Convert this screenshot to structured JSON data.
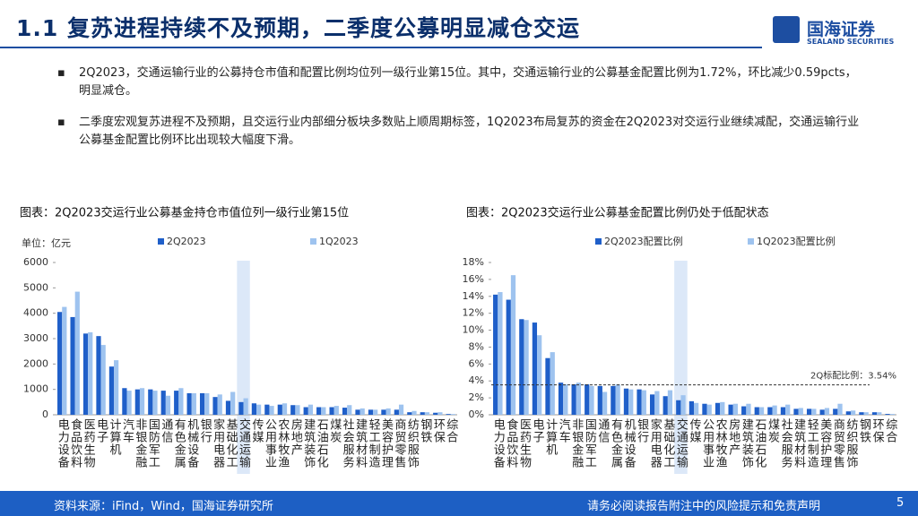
{
  "header": {
    "title": "1.1 复苏进程持续不及预期，二季度公募明显减仓交运",
    "logo": "国海证券",
    "logo_sub": "SEALAND SECURITIES"
  },
  "bullets": [
    "2Q2023，交通运输行业的公募持仓市值和配置比例均位列一级行业第15位。其中，交通运输行业的公募基金配置比例为1.72%，环比减少0.59pcts，明显减仓。",
    "二季度宏观复苏进程不及预期，且交运行业内部细分板块多数贴上顺周期标签，1Q2023布局复苏的资金在2Q2023对交运行业继续减配，交通运输行业公募基金配置比例环比出现较大幅度下滑。"
  ],
  "footer": {
    "source": "资料来源：iFind，Wind，国海证券研究所",
    "disclaimer": "请务必阅读报告附注中的风险提示和免责声明",
    "page": "5"
  },
  "chart_data": [
    {
      "type": "bar",
      "title": "图表：2Q2023交运行业公募基金持仓市值位列一级行业第15位",
      "y_label": "单位：亿元",
      "categories": [
        "电力设备",
        "食品饮料",
        "医药生物",
        "电子",
        "计算机",
        "汽车",
        "非银金融",
        "国防军工",
        "通信",
        "有色金属",
        "机械设备",
        "银行",
        "家用电器",
        "基础化工",
        "交通运输",
        "传媒",
        "公用事业",
        "农林牧渔",
        "房地产",
        "建筑装饰",
        "石油石化",
        "煤炭",
        "社会服务",
        "建筑材料",
        "轻工制造",
        "美容护理",
        "商贸零售",
        "纺织服饰",
        "钢铁",
        "环保",
        "综合"
      ],
      "series": [
        {
          "name": "2Q2023",
          "color": "#1f5fc9",
          "values": [
            4050,
            3850,
            3200,
            3100,
            1900,
            1050,
            1000,
            1000,
            950,
            950,
            850,
            850,
            700,
            550,
            500,
            450,
            400,
            400,
            380,
            300,
            300,
            300,
            280,
            200,
            200,
            200,
            200,
            100,
            100,
            80,
            30
          ]
        },
        {
          "name": "1Q2023",
          "color": "#9ec3ef",
          "values": [
            4250,
            4850,
            3250,
            2750,
            2150,
            950,
            1050,
            950,
            750,
            1050,
            850,
            850,
            800,
            900,
            650,
            400,
            350,
            450,
            380,
            400,
            300,
            350,
            380,
            250,
            200,
            250,
            400,
            150,
            100,
            100,
            30
          ]
        }
      ],
      "ylim": [
        0,
        6000
      ],
      "yticks": [
        0,
        1000,
        2000,
        3000,
        4000,
        5000,
        6000
      ],
      "highlight": 14,
      "highlight_color": "#dce8f8"
    },
    {
      "type": "bar",
      "title": "图表：2Q2023交运行业公募基金配置比例仍处于低配状态",
      "categories": [
        "电力设备",
        "食品饮料",
        "医药生物",
        "电子",
        "计算机",
        "汽车",
        "非银金融",
        "国防军工",
        "通信",
        "有色金属",
        "机械设备",
        "银行",
        "家用电器",
        "基础化工",
        "交通运输",
        "传媒",
        "公用事业",
        "农林牧渔",
        "房地产",
        "建筑装饰",
        "石油石化",
        "煤炭",
        "社会服务",
        "建筑材料",
        "轻工制造",
        "美容护理",
        "商贸零售",
        "纺织服饰",
        "钢铁",
        "环保",
        "综合"
      ],
      "series": [
        {
          "name": "2Q2023配置比例",
          "color": "#1f5fc9",
          "values": [
            14.2,
            13.6,
            11.3,
            10.9,
            6.7,
            3.8,
            3.6,
            3.6,
            3.4,
            3.4,
            3.1,
            3.0,
            2.4,
            2.2,
            1.72,
            1.6,
            1.3,
            1.4,
            1.2,
            1.0,
            0.9,
            0.9,
            0.9,
            0.7,
            0.7,
            0.6,
            0.7,
            0.4,
            0.3,
            0.3,
            0.1
          ]
        },
        {
          "name": "1Q2023配置比例",
          "color": "#9ec3ef",
          "values": [
            14.5,
            16.5,
            11.2,
            9.4,
            7.4,
            3.6,
            3.8,
            3.4,
            2.7,
            3.6,
            3.0,
            2.9,
            2.8,
            2.9,
            2.31,
            1.4,
            1.2,
            1.5,
            1.3,
            1.3,
            0.9,
            1.1,
            1.2,
            0.8,
            0.7,
            0.8,
            1.3,
            0.5,
            0.3,
            0.3,
            0.1
          ]
        }
      ],
      "ylim": [
        0,
        18
      ],
      "yticks": [
        {
          "value": 0,
          "label": "0%"
        },
        {
          "value": 2,
          "label": "2%"
        },
        {
          "value": 4,
          "label": "4%"
        },
        {
          "value": 6,
          "label": "6%"
        },
        {
          "value": 8,
          "label": "8%"
        },
        {
          "value": 10,
          "label": "10%"
        },
        {
          "value": 12,
          "label": "12%"
        },
        {
          "value": 14,
          "label": "14%"
        },
        {
          "value": 16,
          "label": "16%"
        },
        {
          "value": 18,
          "label": "18%"
        }
      ],
      "annotations": [
        {
          "value": 3.54,
          "label": "2Q标配比例：3.54%"
        }
      ],
      "highlight": 14,
      "highlight_color": "#dce8f8"
    }
  ]
}
